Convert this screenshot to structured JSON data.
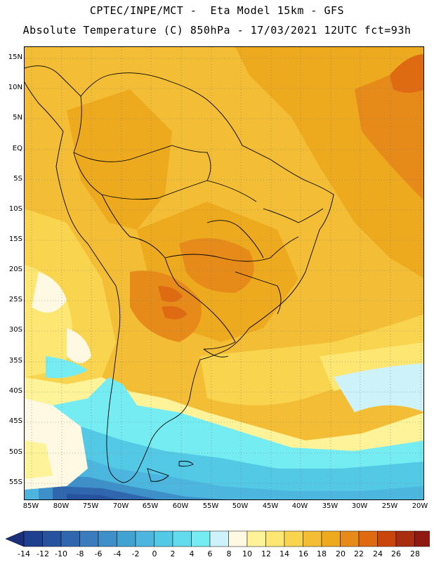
{
  "title": {
    "line1": "CPTEC/INPE/MCT -  Eta Model 15km - GFS",
    "line2": "Absolute Temperature (C) 850hPa - 17/03/2021 12UTC fct=93h"
  },
  "map": {
    "region": "South America",
    "lat_labels": [
      "15N",
      "10N",
      "5N",
      "EQ",
      "5S",
      "10S",
      "15S",
      "20S",
      "25S",
      "30S",
      "35S",
      "40S",
      "45S",
      "50S",
      "55S"
    ],
    "lon_labels": [
      "85W",
      "80W",
      "75W",
      "70W",
      "65W",
      "60W",
      "55W",
      "50W",
      "45W",
      "40W",
      "35W",
      "30W",
      "25W",
      "20W"
    ],
    "hot_spots": [
      "~22-24 C over the Atlantic near 10N 20W",
      "~22 C over Paraguay/N Argentina"
    ],
    "cold_spots": [
      "-14 C to -10 C south of Tierra del Fuego"
    ]
  },
  "colorbar": {
    "labels": [
      "-14",
      "-12",
      "-10",
      "-8",
      "-6",
      "-4",
      "-2",
      "0",
      "2",
      "4",
      "6",
      "8",
      "10",
      "12",
      "14",
      "16",
      "18",
      "20",
      "22",
      "24",
      "26",
      "28"
    ],
    "colors": [
      "#1f3f8f",
      "#27529e",
      "#2f66ad",
      "#3b7cbc",
      "#3e90c8",
      "#42a3d3",
      "#4cb6de",
      "#53c9e6",
      "#62dcec",
      "#74ecf2",
      "#cdf2fa",
      "#fff8e2",
      "#fff39a",
      "#fde772",
      "#f8d44f",
      "#f3be35",
      "#eeaa1f",
      "#e68a1a",
      "#de6a12",
      "#c9450c",
      "#a92e10",
      "#8e1a12",
      "#6e0a16"
    ],
    "under_color": "#1b2f7a",
    "over_color": "#6a0012"
  }
}
